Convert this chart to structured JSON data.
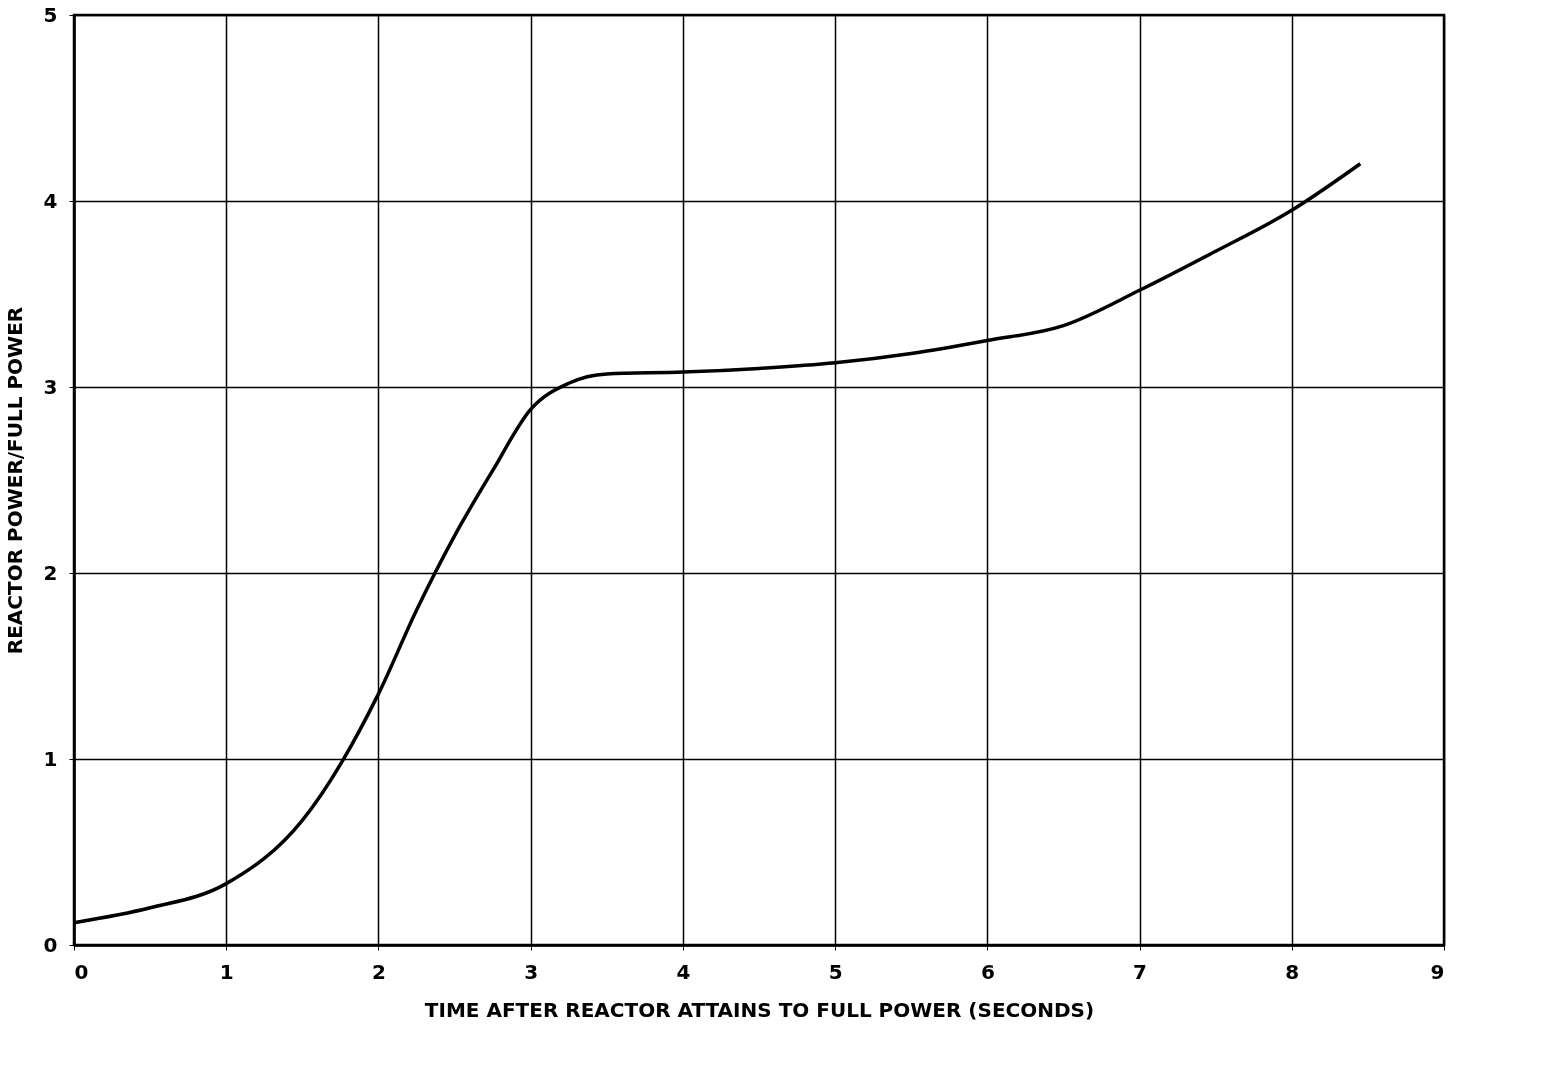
{
  "chart_data": {
    "type": "line",
    "xlabel": "TIME AFTER REACTOR ATTAINS TO FULL POWER (SECONDS)",
    "ylabel": "REACTOR POWER/FULL POWER",
    "x": [
      0,
      0.5,
      1,
      1.5,
      2,
      2.25,
      2.5,
      2.75,
      3,
      3.25,
      3.5,
      4,
      4.5,
      5,
      5.5,
      6,
      6.5,
      7,
      7.5,
      8,
      8.45
    ],
    "series": [
      {
        "color": "#000000",
        "values": [
          0.12,
          0.2,
          0.33,
          0.67,
          1.35,
          1.8,
          2.2,
          2.55,
          2.88,
          3.02,
          3.07,
          3.08,
          3.1,
          3.13,
          3.18,
          3.25,
          3.33,
          3.52,
          3.73,
          3.95,
          4.2
        ]
      }
    ],
    "xlim": [
      0,
      9
    ],
    "ylim": [
      0,
      5
    ],
    "xticks": [
      0,
      1,
      2,
      3,
      4,
      5,
      6,
      7,
      8,
      9
    ],
    "yticks": [
      0,
      1,
      2,
      3,
      4,
      5
    ],
    "grid": true,
    "marker": "none",
    "line_style": "solid"
  }
}
